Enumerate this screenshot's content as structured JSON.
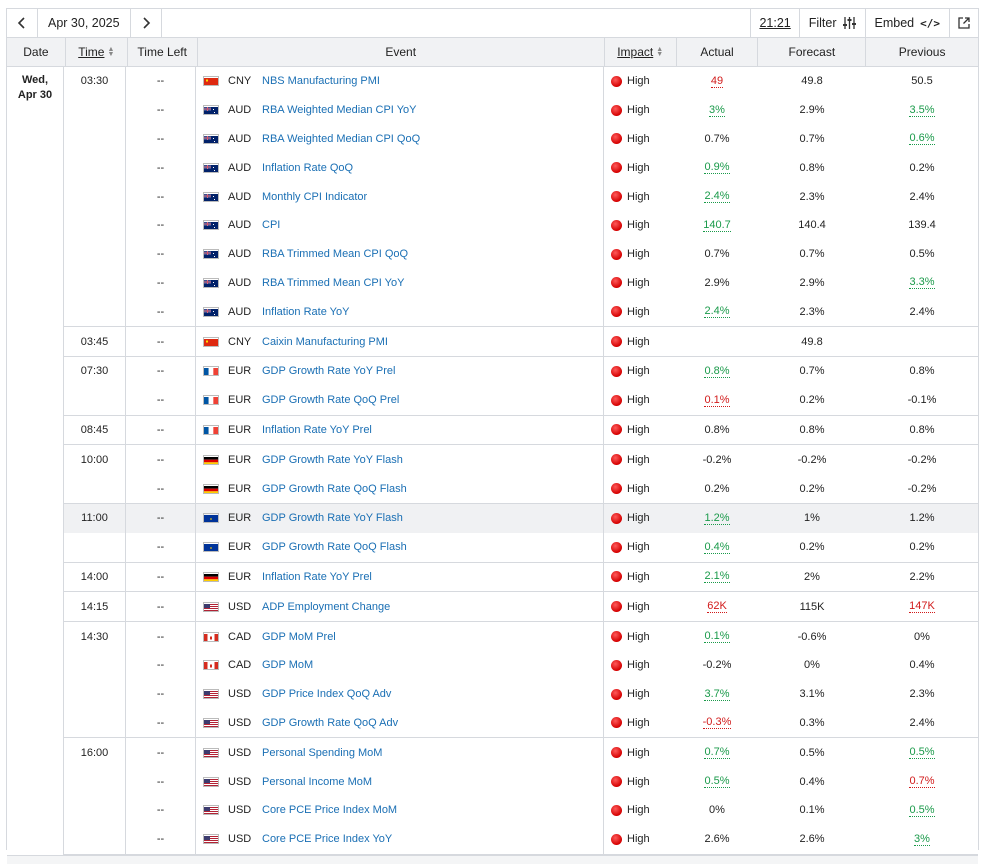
{
  "toolbar": {
    "date_label": "Apr 30, 2025",
    "time": "21:21",
    "filter_label": "Filter",
    "embed_label": "Embed",
    "embed_code": "</>"
  },
  "columns": {
    "date": "Date",
    "time": "Time",
    "time_left": "Time Left",
    "event": "Event",
    "impact": "Impact",
    "actual": "Actual",
    "forecast": "Forecast",
    "previous": "Previous"
  },
  "date_day": "Wed,",
  "date_md": "Apr 30",
  "colors": {
    "good": "#1a9a4a",
    "bad": "#d11a1a",
    "link": "#1a6fb4",
    "impact": "#d40000"
  },
  "groups": [
    {
      "time": "03:30",
      "rows": [
        {
          "left": "--",
          "flag": "cn",
          "currency": "CNY",
          "event": "NBS Manufacturing PMI",
          "impact": "High",
          "actual": "49",
          "actual_state": "bad",
          "forecast": "49.8",
          "previous": "50.5",
          "previous_state": ""
        },
        {
          "left": "--",
          "flag": "au",
          "currency": "AUD",
          "event": "RBA Weighted Median CPI YoY",
          "impact": "High",
          "actual": "3%",
          "actual_state": "good",
          "forecast": "2.9%",
          "previous": "3.5%",
          "previous_state": "good"
        },
        {
          "left": "--",
          "flag": "au",
          "currency": "AUD",
          "event": "RBA Weighted Median CPI QoQ",
          "impact": "High",
          "actual": "0.7%",
          "actual_state": "",
          "forecast": "0.7%",
          "previous": "0.6%",
          "previous_state": "good"
        },
        {
          "left": "--",
          "flag": "au",
          "currency": "AUD",
          "event": "Inflation Rate QoQ",
          "impact": "High",
          "actual": "0.9%",
          "actual_state": "good",
          "forecast": "0.8%",
          "previous": "0.2%",
          "previous_state": ""
        },
        {
          "left": "--",
          "flag": "au",
          "currency": "AUD",
          "event": "Monthly CPI Indicator",
          "impact": "High",
          "actual": "2.4%",
          "actual_state": "good",
          "forecast": "2.3%",
          "previous": "2.4%",
          "previous_state": ""
        },
        {
          "left": "--",
          "flag": "au",
          "currency": "AUD",
          "event": "CPI",
          "impact": "High",
          "actual": "140.7",
          "actual_state": "good",
          "forecast": "140.4",
          "previous": "139.4",
          "previous_state": ""
        },
        {
          "left": "--",
          "flag": "au",
          "currency": "AUD",
          "event": "RBA Trimmed Mean CPI QoQ",
          "impact": "High",
          "actual": "0.7%",
          "actual_state": "",
          "forecast": "0.7%",
          "previous": "0.5%",
          "previous_state": ""
        },
        {
          "left": "--",
          "flag": "au",
          "currency": "AUD",
          "event": "RBA Trimmed Mean CPI YoY",
          "impact": "High",
          "actual": "2.9%",
          "actual_state": "",
          "forecast": "2.9%",
          "previous": "3.3%",
          "previous_state": "good"
        },
        {
          "left": "--",
          "flag": "au",
          "currency": "AUD",
          "event": "Inflation Rate YoY",
          "impact": "High",
          "actual": "2.4%",
          "actual_state": "good",
          "forecast": "2.3%",
          "previous": "2.4%",
          "previous_state": ""
        }
      ]
    },
    {
      "time": "03:45",
      "rows": [
        {
          "left": "--",
          "flag": "cn",
          "currency": "CNY",
          "event": "Caixin Manufacturing PMI",
          "impact": "High",
          "actual": "",
          "actual_state": "",
          "forecast": "49.8",
          "previous": "",
          "previous_state": ""
        }
      ]
    },
    {
      "time": "07:30",
      "rows": [
        {
          "left": "--",
          "flag": "fr",
          "currency": "EUR",
          "event": "GDP Growth Rate YoY Prel",
          "impact": "High",
          "actual": "0.8%",
          "actual_state": "good",
          "forecast": "0.7%",
          "previous": "0.8%",
          "previous_state": ""
        },
        {
          "left": "--",
          "flag": "fr",
          "currency": "EUR",
          "event": "GDP Growth Rate QoQ Prel",
          "impact": "High",
          "actual": "0.1%",
          "actual_state": "bad",
          "forecast": "0.2%",
          "previous": "-0.1%",
          "previous_state": ""
        }
      ]
    },
    {
      "time": "08:45",
      "rows": [
        {
          "left": "--",
          "flag": "fr",
          "currency": "EUR",
          "event": "Inflation Rate YoY Prel",
          "impact": "High",
          "actual": "0.8%",
          "actual_state": "",
          "forecast": "0.8%",
          "previous": "0.8%",
          "previous_state": ""
        }
      ]
    },
    {
      "time": "10:00",
      "rows": [
        {
          "left": "--",
          "flag": "de",
          "currency": "EUR",
          "event": "GDP Growth Rate YoY Flash",
          "impact": "High",
          "actual": "-0.2%",
          "actual_state": "",
          "forecast": "-0.2%",
          "previous": "-0.2%",
          "previous_state": ""
        },
        {
          "left": "--",
          "flag": "de",
          "currency": "EUR",
          "event": "GDP Growth Rate QoQ Flash",
          "impact": "High",
          "actual": "0.2%",
          "actual_state": "",
          "forecast": "0.2%",
          "previous": "-0.2%",
          "previous_state": ""
        }
      ]
    },
    {
      "time": "11:00",
      "rows": [
        {
          "left": "--",
          "flag": "eu",
          "currency": "EUR",
          "event": "GDP Growth Rate YoY Flash",
          "impact": "High",
          "actual": "1.2%",
          "actual_state": "good",
          "forecast": "1%",
          "previous": "1.2%",
          "previous_state": "",
          "hl": true
        },
        {
          "left": "--",
          "flag": "eu",
          "currency": "EUR",
          "event": "GDP Growth Rate QoQ Flash",
          "impact": "High",
          "actual": "0.4%",
          "actual_state": "good",
          "forecast": "0.2%",
          "previous": "0.2%",
          "previous_state": ""
        }
      ]
    },
    {
      "time": "14:00",
      "rows": [
        {
          "left": "--",
          "flag": "de",
          "currency": "EUR",
          "event": "Inflation Rate YoY Prel",
          "impact": "High",
          "actual": "2.1%",
          "actual_state": "good",
          "forecast": "2%",
          "previous": "2.2%",
          "previous_state": ""
        }
      ]
    },
    {
      "time": "14:15",
      "rows": [
        {
          "left": "--",
          "flag": "us",
          "currency": "USD",
          "event": "ADP Employment Change",
          "impact": "High",
          "actual": "62K",
          "actual_state": "bad",
          "forecast": "115K",
          "previous": "147K",
          "previous_state": "bad"
        }
      ]
    },
    {
      "time": "14:30",
      "rows": [
        {
          "left": "--",
          "flag": "ca",
          "currency": "CAD",
          "event": "GDP MoM Prel",
          "impact": "High",
          "actual": "0.1%",
          "actual_state": "good",
          "forecast": "-0.6%",
          "previous": "0%",
          "previous_state": ""
        },
        {
          "left": "--",
          "flag": "ca",
          "currency": "CAD",
          "event": "GDP MoM",
          "impact": "High",
          "actual": "-0.2%",
          "actual_state": "",
          "forecast": "0%",
          "previous": "0.4%",
          "previous_state": ""
        },
        {
          "left": "--",
          "flag": "us",
          "currency": "USD",
          "event": "GDP Price Index QoQ Adv",
          "impact": "High",
          "actual": "3.7%",
          "actual_state": "good",
          "forecast": "3.1%",
          "previous": "2.3%",
          "previous_state": ""
        },
        {
          "left": "--",
          "flag": "us",
          "currency": "USD",
          "event": "GDP Growth Rate QoQ Adv",
          "impact": "High",
          "actual": "-0.3%",
          "actual_state": "bad",
          "forecast": "0.3%",
          "previous": "2.4%",
          "previous_state": ""
        }
      ]
    },
    {
      "time": "16:00",
      "rows": [
        {
          "left": "--",
          "flag": "us",
          "currency": "USD",
          "event": "Personal Spending MoM",
          "impact": "High",
          "actual": "0.7%",
          "actual_state": "good",
          "forecast": "0.5%",
          "previous": "0.5%",
          "previous_state": "good"
        },
        {
          "left": "--",
          "flag": "us",
          "currency": "USD",
          "event": "Personal Income MoM",
          "impact": "High",
          "actual": "0.5%",
          "actual_state": "good",
          "forecast": "0.4%",
          "previous": "0.7%",
          "previous_state": "bad"
        },
        {
          "left": "--",
          "flag": "us",
          "currency": "USD",
          "event": "Core PCE Price Index MoM",
          "impact": "High",
          "actual": "0%",
          "actual_state": "",
          "forecast": "0.1%",
          "previous": "0.5%",
          "previous_state": "good"
        },
        {
          "left": "--",
          "flag": "us",
          "currency": "USD",
          "event": "Core PCE Price Index YoY",
          "impact": "High",
          "actual": "2.6%",
          "actual_state": "",
          "forecast": "2.6%",
          "previous": "3%",
          "previous_state": "good"
        }
      ]
    }
  ]
}
